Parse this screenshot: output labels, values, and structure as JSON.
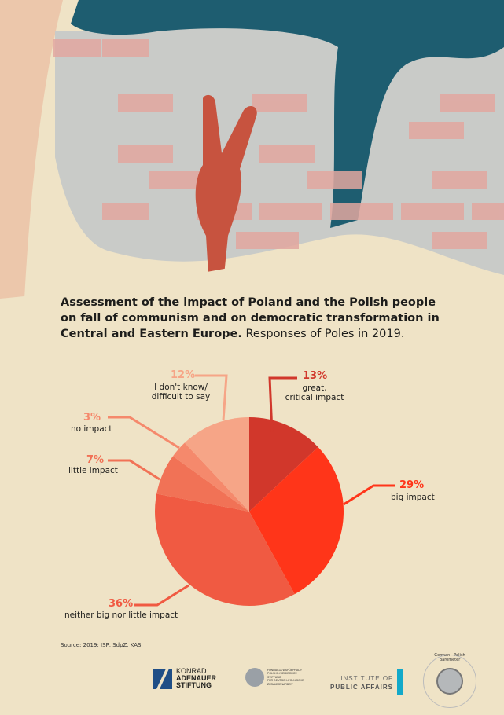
{
  "title": {
    "bold": "Assessment of the impact of Poland and the Polish people on fall of communism and on democratic transformation in Central and Eastern Europe.",
    "regular": " Responses of Poles in 2019."
  },
  "chart_data": {
    "type": "pie",
    "title": "Assessment of the impact of Poland and the Polish people on fall of communism and on democratic transformation in Central and Eastern Europe. Responses of Poles in 2019.",
    "slices": [
      {
        "label": "great, critical impact",
        "value": 13,
        "pct_label": "13%",
        "color": "#d1372b"
      },
      {
        "label": "big impact",
        "value": 29,
        "pct_label": "29%",
        "color": "#ff3519"
      },
      {
        "label": "neither big nor little impact",
        "value": 36,
        "pct_label": "36%",
        "color": "#f05a42"
      },
      {
        "label": "little impact",
        "value": 7,
        "pct_label": "7%",
        "color": "#f17256"
      },
      {
        "label": "no impact",
        "value": 3,
        "pct_label": "3%",
        "color": "#f5896c"
      },
      {
        "label": "I don't know/ difficult to say",
        "value": 12,
        "pct_label": "12%",
        "color": "#f6a587"
      }
    ],
    "label_lines": {
      "great": [
        "great,",
        "critical impact"
      ],
      "dontknow": [
        "I don't know/",
        "difficult to say"
      ]
    }
  },
  "source": "Source:  2019:  ISP, SdpZ, KAS",
  "logos": {
    "kas": [
      "KONRAD",
      "ADENAUER",
      "STIFTUNG"
    ],
    "fwpn": [
      "FUNDACJA WSPÓŁPRACY",
      "POLSKO-NIEMIECKIEJ",
      "STIFTUNG",
      "FÜR DEUTSCH-POLNISCHE",
      "ZUSAMMENARBEIT"
    ],
    "isp": [
      "INSTITUTE OF",
      "PUBLIC AFFAIRS"
    ],
    "barometer": "German - Polish Barometer"
  }
}
